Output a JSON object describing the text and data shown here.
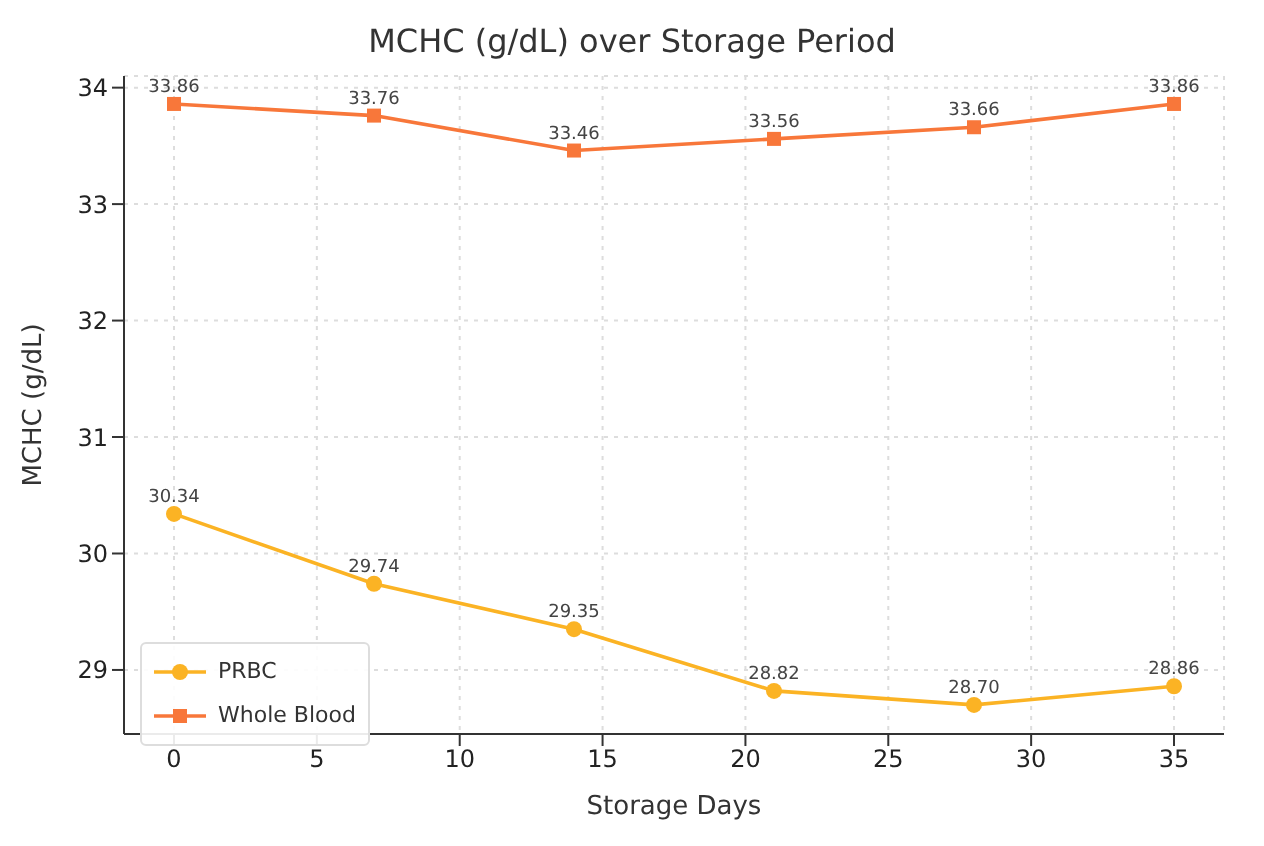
{
  "chart_data": {
    "type": "line",
    "title": "MCHC (g/dL) over Storage Period",
    "xlabel": "Storage Days",
    "ylabel": "MCHC (g/dL)",
    "x": [
      0,
      7,
      14,
      21,
      28,
      35
    ],
    "series": [
      {
        "name": "PRBC",
        "color": "#fbb324",
        "marker": "circle",
        "values": [
          30.34,
          29.74,
          29.35,
          28.82,
          28.7,
          28.86
        ],
        "value_labels": [
          "30.34",
          "29.74",
          "29.35",
          "28.82",
          "28.70",
          "28.86"
        ]
      },
      {
        "name": "Whole Blood",
        "color": "#f8773a",
        "marker": "square",
        "values": [
          33.86,
          33.76,
          33.46,
          33.56,
          33.66,
          33.86
        ],
        "value_labels": [
          "33.86",
          "33.76",
          "33.46",
          "33.56",
          "33.66",
          "33.86"
        ]
      }
    ],
    "xlim": [
      -1.75,
      36.75
    ],
    "xticks": [
      0,
      5,
      10,
      15,
      20,
      25,
      30,
      35
    ],
    "ylim": [
      28.45,
      34.1
    ],
    "yticks": [
      29,
      30,
      31,
      32,
      33,
      34
    ],
    "grid": true,
    "legend": "bottom left"
  }
}
